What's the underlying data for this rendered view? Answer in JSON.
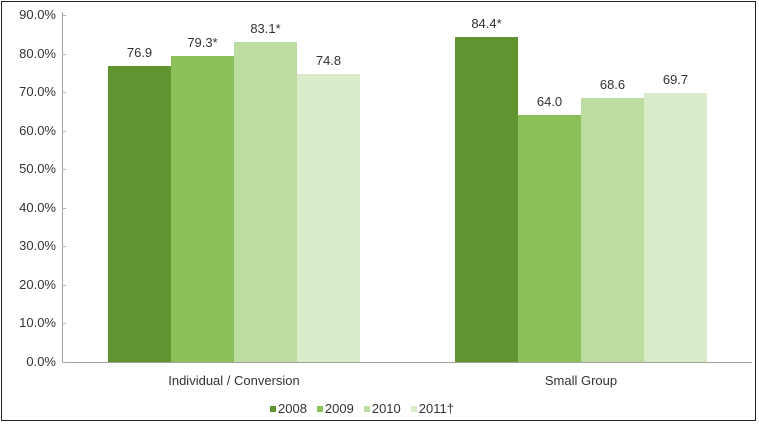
{
  "chart_data": {
    "type": "bar",
    "title": "",
    "xlabel": "",
    "ylabel": "",
    "ylim": [
      0,
      90
    ],
    "yticks": [
      "0.0%",
      "10.0%",
      "20.0%",
      "30.0%",
      "40.0%",
      "50.0%",
      "60.0%",
      "70.0%",
      "80.0%",
      "90.0%"
    ],
    "categories": [
      "Individual / Conversion",
      "Small Group"
    ],
    "series": [
      {
        "name": "2008",
        "color": "#5f9431",
        "values": [
          76.9,
          84.4
        ],
        "labels": [
          "76.9",
          "84.4*"
        ]
      },
      {
        "name": "2009",
        "color": "#8cc15a",
        "values": [
          79.3,
          64.0
        ],
        "labels": [
          "79.3*",
          "64.0"
        ]
      },
      {
        "name": "2010",
        "color": "#bcdca0",
        "values": [
          83.1,
          68.6
        ],
        "labels": [
          "83.1*",
          "68.6"
        ]
      },
      {
        "name": "2011†",
        "color": "#d9ebc8",
        "values": [
          74.8,
          69.7
        ],
        "labels": [
          "74.8",
          "69.7"
        ]
      }
    ],
    "grid": false,
    "legend_position": "bottom"
  }
}
